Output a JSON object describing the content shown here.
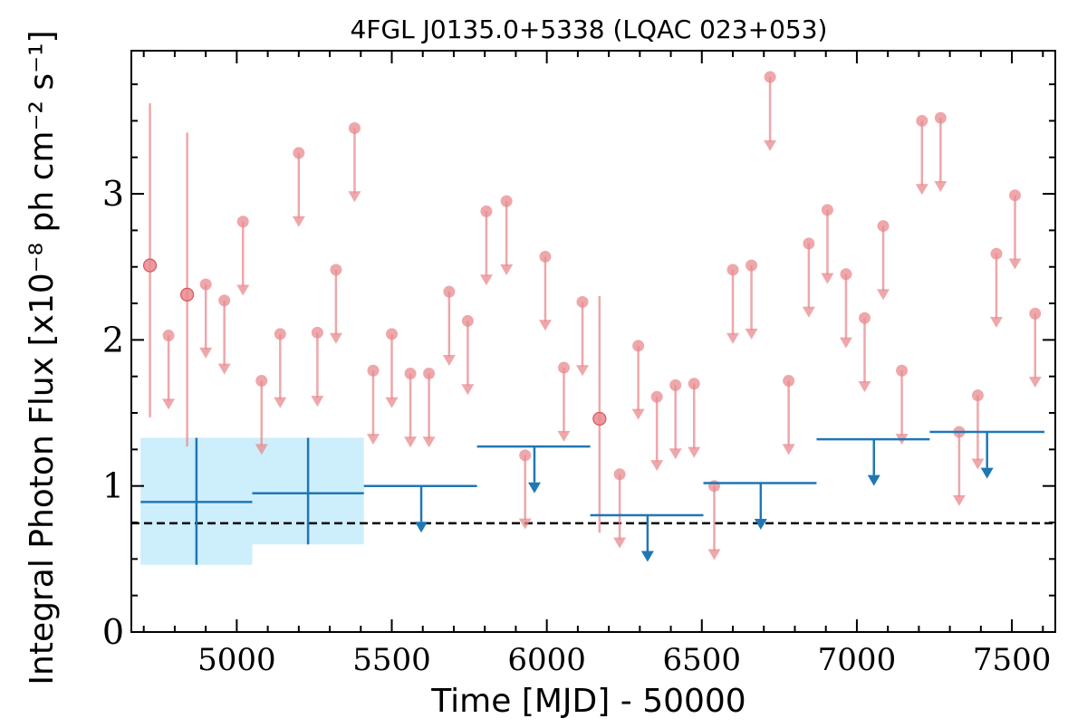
{
  "chart_data": {
    "type": "scatter",
    "title": "4FGL J0135.0+5338 (LQAC 023+053)",
    "xlabel": "Time [MJD] - 50000",
    "ylabel": "Integral Photon Flux [x10⁻⁸ ph cm⁻² s⁻¹]",
    "xlim": [
      4660,
      7640
    ],
    "ylim": [
      0,
      3.98
    ],
    "x_ticks": [
      5000,
      5500,
      6000,
      6500,
      7000,
      7500
    ],
    "x_tick_labels": [
      "5000",
      "5500",
      "6000",
      "6500",
      "7000",
      "7500"
    ],
    "y_ticks": [
      0,
      1,
      2,
      3
    ],
    "y_tick_labels": [
      "0",
      "1",
      "2",
      "3"
    ],
    "reference_line": {
      "y": 0.745,
      "style": "dashed",
      "color": "#000000"
    },
    "colors": {
      "short_bins": "#e8898e",
      "long_bins": "#1f77b4",
      "long_bins_band": "#cdeefb",
      "axes": "#000000"
    },
    "series": [
      {
        "kind": "short-bin detections",
        "points": [
          {
            "x": 4720,
            "y": 2.51,
            "ylow": 1.47,
            "yhigh": 3.62
          },
          {
            "x": 4840,
            "y": 2.31,
            "ylow": 1.27,
            "yhigh": 3.42
          },
          {
            "x": 6170,
            "y": 1.46,
            "ylow": 0.68,
            "yhigh": 2.3
          }
        ]
      },
      {
        "kind": "short-bin upper limits",
        "points": [
          {
            "x": 4780,
            "y": 2.03
          },
          {
            "x": 4900,
            "y": 2.38
          },
          {
            "x": 4960,
            "y": 2.27
          },
          {
            "x": 5020,
            "y": 2.81
          },
          {
            "x": 5080,
            "y": 1.72
          },
          {
            "x": 5140,
            "y": 2.04
          },
          {
            "x": 5200,
            "y": 3.28
          },
          {
            "x": 5260,
            "y": 2.05
          },
          {
            "x": 5320,
            "y": 2.48
          },
          {
            "x": 5380,
            "y": 3.45
          },
          {
            "x": 5440,
            "y": 1.79
          },
          {
            "x": 5500,
            "y": 2.04
          },
          {
            "x": 5560,
            "y": 1.77
          },
          {
            "x": 5620,
            "y": 1.77
          },
          {
            "x": 5685,
            "y": 2.33
          },
          {
            "x": 5745,
            "y": 2.13
          },
          {
            "x": 5805,
            "y": 2.88
          },
          {
            "x": 5870,
            "y": 2.95
          },
          {
            "x": 5930,
            "y": 1.21
          },
          {
            "x": 5995,
            "y": 2.57
          },
          {
            "x": 6055,
            "y": 1.81
          },
          {
            "x": 6115,
            "y": 2.26
          },
          {
            "x": 6235,
            "y": 1.08
          },
          {
            "x": 6295,
            "y": 1.96
          },
          {
            "x": 6355,
            "y": 1.61
          },
          {
            "x": 6415,
            "y": 1.69
          },
          {
            "x": 6475,
            "y": 1.7
          },
          {
            "x": 6540,
            "y": 1.0
          },
          {
            "x": 6600,
            "y": 2.48
          },
          {
            "x": 6660,
            "y": 2.51
          },
          {
            "x": 6720,
            "y": 3.8
          },
          {
            "x": 6780,
            "y": 1.72
          },
          {
            "x": 6845,
            "y": 2.66
          },
          {
            "x": 6905,
            "y": 2.89
          },
          {
            "x": 6965,
            "y": 2.45
          },
          {
            "x": 7025,
            "y": 2.15
          },
          {
            "x": 7085,
            "y": 2.78
          },
          {
            "x": 7145,
            "y": 1.79
          },
          {
            "x": 7210,
            "y": 3.5
          },
          {
            "x": 7270,
            "y": 3.52
          },
          {
            "x": 7330,
            "y": 1.37
          },
          {
            "x": 7390,
            "y": 1.62
          },
          {
            "x": 7450,
            "y": 2.59
          },
          {
            "x": 7510,
            "y": 2.99
          },
          {
            "x": 7575,
            "y": 2.18
          }
        ]
      },
      {
        "kind": "long-bin detections",
        "points": [
          {
            "x": 4870,
            "xmin": 4690,
            "xmax": 5050,
            "y": 0.89,
            "ylow": 0.46,
            "yhigh": 1.33
          },
          {
            "x": 5230,
            "xmin": 5050,
            "xmax": 5410,
            "y": 0.95,
            "ylow": 0.6,
            "yhigh": 1.33
          }
        ]
      },
      {
        "kind": "long-bin upper limits",
        "points": [
          {
            "x": 5595,
            "xmin": 5410,
            "xmax": 5775,
            "y": 1.0
          },
          {
            "x": 5960,
            "xmin": 5775,
            "xmax": 6140,
            "y": 1.27
          },
          {
            "x": 6325,
            "xmin": 6140,
            "xmax": 6505,
            "y": 0.8
          },
          {
            "x": 6690,
            "xmin": 6505,
            "xmax": 6870,
            "y": 1.02
          },
          {
            "x": 7055,
            "xmin": 6870,
            "xmax": 7235,
            "y": 1.32
          },
          {
            "x": 7420,
            "xmin": 7235,
            "xmax": 7605,
            "y": 1.37
          }
        ]
      }
    ]
  }
}
